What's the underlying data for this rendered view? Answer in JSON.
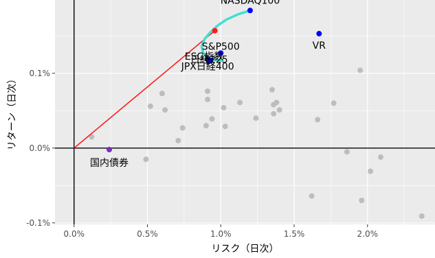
{
  "chart_data": {
    "type": "scatter",
    "title": "",
    "xlabel": "リスク（日次）",
    "ylabel": "リターン（日次）",
    "xlim": [
      -0.0013,
      0.0246
    ],
    "ylim": [
      -0.00102,
      0.00198
    ],
    "x_ticks": [
      0.0,
      0.005,
      0.01,
      0.015,
      0.02
    ],
    "x_tick_labels": [
      "0.0%",
      "0.5%",
      "1.0%",
      "1.5%",
      "2.0%"
    ],
    "y_ticks": [
      -0.001,
      0.0,
      0.001
    ],
    "y_tick_labels": [
      "-0.1%",
      "0.0%",
      "0.1%"
    ],
    "grid": true,
    "colors": {
      "panel": "#ebebeb",
      "grid": "#ffffff",
      "others": "#bdbdbd",
      "highlight": "#0000ff",
      "bond": "#7b2fbe",
      "tangent": "#ff1a1a",
      "frontier": "#40e0d0"
    },
    "other_assets": [
      {
        "x": 0.0012,
        "y": 0.00015
      },
      {
        "x": 0.0049,
        "y": -0.00015
      },
      {
        "x": 0.0052,
        "y": 0.00056
      },
      {
        "x": 0.006,
        "y": 0.00073
      },
      {
        "x": 0.0062,
        "y": 0.00051
      },
      {
        "x": 0.0071,
        "y": 0.0001
      },
      {
        "x": 0.0074,
        "y": 0.00027
      },
      {
        "x": 0.009,
        "y": 0.0003
      },
      {
        "x": 0.0091,
        "y": 0.00076
      },
      {
        "x": 0.0091,
        "y": 0.00065
      },
      {
        "x": 0.0094,
        "y": 0.00039
      },
      {
        "x": 0.0102,
        "y": 0.00054
      },
      {
        "x": 0.0103,
        "y": 0.00029
      },
      {
        "x": 0.0113,
        "y": 0.00061
      },
      {
        "x": 0.0124,
        "y": 0.0004
      },
      {
        "x": 0.0135,
        "y": 0.00078
      },
      {
        "x": 0.0136,
        "y": 0.00058
      },
      {
        "x": 0.0136,
        "y": 0.00046
      },
      {
        "x": 0.0138,
        "y": 0.00061
      },
      {
        "x": 0.014,
        "y": 0.00051
      },
      {
        "x": 0.0166,
        "y": 0.00038
      },
      {
        "x": 0.0177,
        "y": 0.0006
      },
      {
        "x": 0.0186,
        "y": -5e-05
      },
      {
        "x": 0.0195,
        "y": 0.00104
      },
      {
        "x": 0.0196,
        "y": -0.0007
      },
      {
        "x": 0.0202,
        "y": -0.00031
      },
      {
        "x": 0.0209,
        "y": -0.00012
      },
      {
        "x": 0.0162,
        "y": -0.00064
      },
      {
        "x": 0.0237,
        "y": -0.00091
      }
    ],
    "highlighted_assets": [
      {
        "label": "NASDAQ100",
        "x": 0.012,
        "y": 0.00184
      },
      {
        "label": "VR",
        "x": 0.0167,
        "y": 0.00153
      },
      {
        "label": "S&P500",
        "x": 0.01,
        "y": 0.00127
      },
      {
        "label": "ESG指数",
        "x": 0.0091,
        "y": 0.00119
      },
      {
        "label": "日経225",
        "x": 0.0093,
        "y": 0.00117
      },
      {
        "label": "JPX日経400",
        "x": 0.0092,
        "y": 0.00116
      },
      {
        "label": "国内債券",
        "x": 0.0024,
        "y": -2e-05
      }
    ],
    "tangent_line": {
      "x": [
        0.0,
        0.0096
      ],
      "y": [
        0.0,
        0.00157
      ]
    },
    "frontier": {
      "x": [
        0.012,
        0.0112,
        0.0104,
        0.0098,
        0.0093,
        0.0089,
        0.0087,
        0.0088,
        0.0091,
        0.0096,
        0.0101
      ],
      "y": [
        0.00184,
        0.00179,
        0.00172,
        0.00164,
        0.00155,
        0.00146,
        0.00136,
        0.00127,
        0.00121,
        0.00118,
        0.00117
      ]
    },
    "tangent_point": {
      "x": 0.0096,
      "y": 0.00157
    }
  }
}
